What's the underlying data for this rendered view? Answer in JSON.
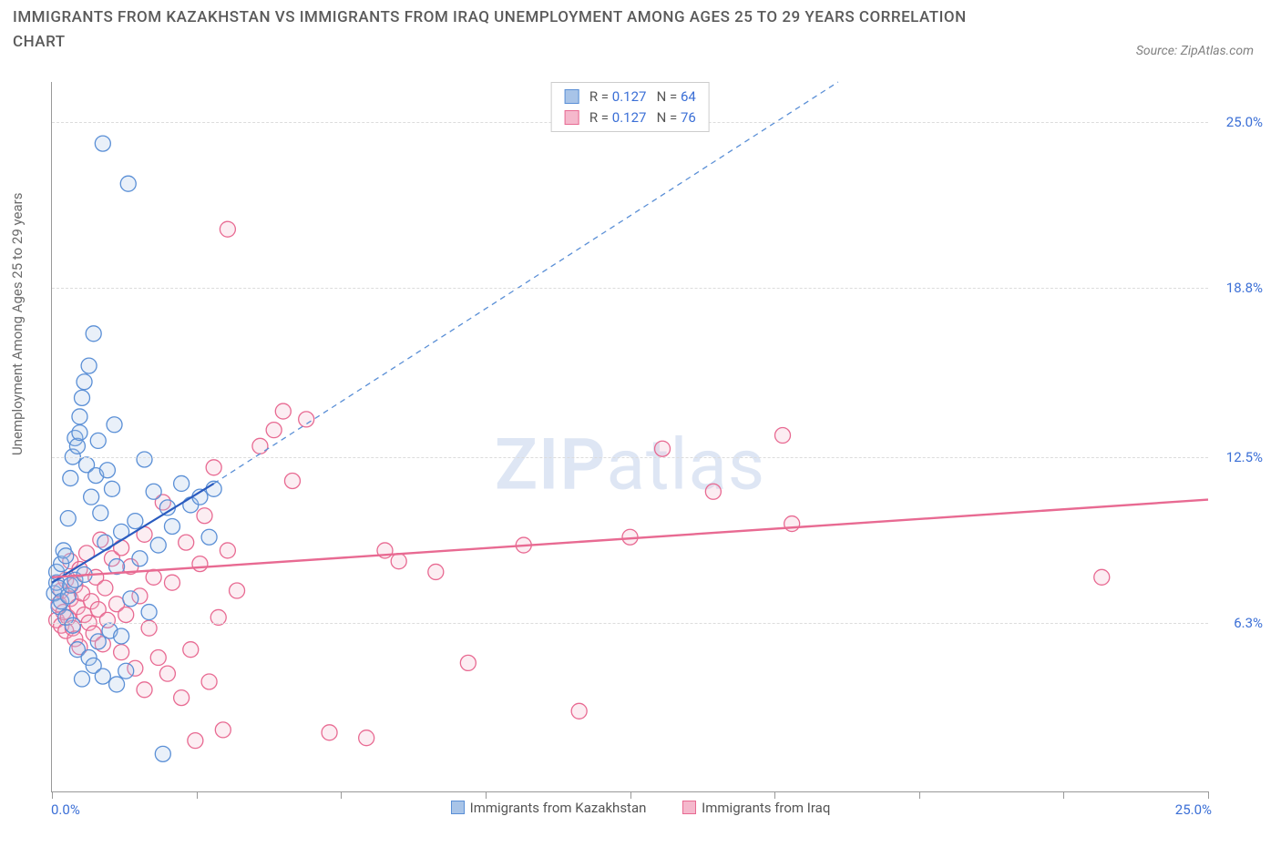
{
  "title": "IMMIGRANTS FROM KAZAKHSTAN VS IMMIGRANTS FROM IRAQ UNEMPLOYMENT AMONG AGES 25 TO 29 YEARS CORRELATION CHART",
  "source": "Source: ZipAtlas.com",
  "y_axis_label": "Unemployment Among Ages 25 to 29 years",
  "watermark": {
    "bold": "ZIP",
    "rest": "atlas"
  },
  "chart": {
    "type": "scatter",
    "background_color": "#ffffff",
    "grid_color": "#dcdcdc",
    "axis_color": "#999999",
    "label_fontsize": 15,
    "title_fontsize": 17,
    "title_color": "#5a5a5a",
    "tick_label_color": "#3b6fd6",
    "xlim": [
      0,
      25
    ],
    "ylim": [
      0,
      26.5
    ],
    "xtick_positions": [
      0,
      3.125,
      6.25,
      9.375,
      12.5,
      15.625,
      18.75,
      21.875,
      25
    ],
    "ytick_labels": [
      {
        "value": 6.3,
        "label": "6.3%"
      },
      {
        "value": 12.5,
        "label": "12.5%"
      },
      {
        "value": 18.8,
        "label": "18.8%"
      },
      {
        "value": 25.0,
        "label": "25.0%"
      }
    ],
    "x_left_label": "0.0%",
    "x_right_label": "25.0%",
    "marker_radius": 8.5,
    "marker_fill_opacity": 0.25,
    "marker_stroke_width": 1.3
  },
  "series": {
    "kazakhstan": {
      "label": "Immigrants from Kazakhstan",
      "color": "#5a8fd6",
      "fill_color": "#a8c4e8",
      "R": "0.127",
      "N": "64",
      "trend": {
        "solid": {
          "x1": 0.0,
          "y1": 7.8,
          "x2": 3.5,
          "y2": 11.5,
          "width": 2.2
        },
        "dashed": {
          "x1": 3.5,
          "y1": 11.5,
          "x2": 17.0,
          "y2": 26.5,
          "dash": "6,5",
          "width": 1.3
        }
      },
      "points": [
        [
          0.05,
          7.4
        ],
        [
          0.1,
          7.8
        ],
        [
          0.1,
          8.2
        ],
        [
          0.15,
          6.9
        ],
        [
          0.15,
          7.6
        ],
        [
          0.2,
          8.5
        ],
        [
          0.2,
          7.1
        ],
        [
          0.25,
          9.0
        ],
        [
          0.3,
          6.5
        ],
        [
          0.3,
          8.8
        ],
        [
          0.35,
          7.3
        ],
        [
          0.35,
          10.2
        ],
        [
          0.4,
          7.7
        ],
        [
          0.4,
          11.7
        ],
        [
          0.45,
          12.5
        ],
        [
          0.45,
          6.2
        ],
        [
          0.5,
          13.2
        ],
        [
          0.5,
          7.9
        ],
        [
          0.55,
          12.9
        ],
        [
          0.55,
          5.3
        ],
        [
          0.6,
          13.4
        ],
        [
          0.6,
          14.0
        ],
        [
          0.65,
          14.7
        ],
        [
          0.65,
          4.2
        ],
        [
          0.7,
          15.3
        ],
        [
          0.7,
          8.1
        ],
        [
          0.75,
          12.2
        ],
        [
          0.8,
          15.9
        ],
        [
          0.8,
          5.0
        ],
        [
          0.85,
          11.0
        ],
        [
          0.9,
          17.1
        ],
        [
          0.9,
          4.7
        ],
        [
          0.95,
          11.8
        ],
        [
          1.0,
          13.1
        ],
        [
          1.0,
          5.6
        ],
        [
          1.05,
          10.4
        ],
        [
          1.1,
          4.3
        ],
        [
          1.1,
          24.2
        ],
        [
          1.15,
          9.3
        ],
        [
          1.2,
          12.0
        ],
        [
          1.25,
          6.0
        ],
        [
          1.3,
          11.3
        ],
        [
          1.35,
          13.7
        ],
        [
          1.4,
          8.4
        ],
        [
          1.4,
          4.0
        ],
        [
          1.5,
          9.7
        ],
        [
          1.5,
          5.8
        ],
        [
          1.6,
          4.5
        ],
        [
          1.65,
          22.7
        ],
        [
          1.7,
          7.2
        ],
        [
          1.8,
          10.1
        ],
        [
          1.9,
          8.7
        ],
        [
          2.0,
          12.4
        ],
        [
          2.1,
          6.7
        ],
        [
          2.2,
          11.2
        ],
        [
          2.3,
          9.2
        ],
        [
          2.4,
          1.4
        ],
        [
          2.5,
          10.6
        ],
        [
          2.6,
          9.9
        ],
        [
          2.8,
          11.5
        ],
        [
          3.0,
          10.7
        ],
        [
          3.2,
          11.0
        ],
        [
          3.4,
          9.5
        ],
        [
          3.5,
          11.3
        ]
      ]
    },
    "iraq": {
      "label": "Immigrants from Iraq",
      "color": "#e86a92",
      "fill_color": "#f5b8cc",
      "R": "0.127",
      "N": "76",
      "trend": {
        "solid": {
          "x1": 0.0,
          "y1": 8.0,
          "x2": 25.0,
          "y2": 10.9,
          "width": 2.4
        }
      },
      "points": [
        [
          0.1,
          6.4
        ],
        [
          0.15,
          7.0
        ],
        [
          0.2,
          6.2
        ],
        [
          0.2,
          7.5
        ],
        [
          0.25,
          6.7
        ],
        [
          0.3,
          6.0
        ],
        [
          0.3,
          7.9
        ],
        [
          0.35,
          6.5
        ],
        [
          0.4,
          7.2
        ],
        [
          0.4,
          8.6
        ],
        [
          0.45,
          6.1
        ],
        [
          0.5,
          7.7
        ],
        [
          0.5,
          5.7
        ],
        [
          0.55,
          6.9
        ],
        [
          0.6,
          8.3
        ],
        [
          0.6,
          5.4
        ],
        [
          0.65,
          7.4
        ],
        [
          0.7,
          6.6
        ],
        [
          0.75,
          8.9
        ],
        [
          0.8,
          6.3
        ],
        [
          0.85,
          7.1
        ],
        [
          0.9,
          5.9
        ],
        [
          0.95,
          8.0
        ],
        [
          1.0,
          6.8
        ],
        [
          1.05,
          9.4
        ],
        [
          1.1,
          5.5
        ],
        [
          1.15,
          7.6
        ],
        [
          1.2,
          6.4
        ],
        [
          1.3,
          8.7
        ],
        [
          1.4,
          7.0
        ],
        [
          1.5,
          9.1
        ],
        [
          1.5,
          5.2
        ],
        [
          1.6,
          6.6
        ],
        [
          1.7,
          8.4
        ],
        [
          1.8,
          4.6
        ],
        [
          1.9,
          7.3
        ],
        [
          2.0,
          9.6
        ],
        [
          2.0,
          3.8
        ],
        [
          2.1,
          6.1
        ],
        [
          2.2,
          8.0
        ],
        [
          2.3,
          5.0
        ],
        [
          2.4,
          10.8
        ],
        [
          2.5,
          4.4
        ],
        [
          2.6,
          7.8
        ],
        [
          2.8,
          3.5
        ],
        [
          2.9,
          9.3
        ],
        [
          3.0,
          5.3
        ],
        [
          3.1,
          1.9
        ],
        [
          3.2,
          8.5
        ],
        [
          3.3,
          10.3
        ],
        [
          3.4,
          4.1
        ],
        [
          3.5,
          12.1
        ],
        [
          3.6,
          6.5
        ],
        [
          3.7,
          2.3
        ],
        [
          3.8,
          9.0
        ],
        [
          3.8,
          21.0
        ],
        [
          4.0,
          7.5
        ],
        [
          4.5,
          12.9
        ],
        [
          4.8,
          13.5
        ],
        [
          5.0,
          14.2
        ],
        [
          5.2,
          11.6
        ],
        [
          5.5,
          13.9
        ],
        [
          6.0,
          2.2
        ],
        [
          6.8,
          2.0
        ],
        [
          7.2,
          9.0
        ],
        [
          7.5,
          8.6
        ],
        [
          8.3,
          8.2
        ],
        [
          9.0,
          4.8
        ],
        [
          10.2,
          9.2
        ],
        [
          11.4,
          3.0
        ],
        [
          12.5,
          9.5
        ],
        [
          13.2,
          12.8
        ],
        [
          14.3,
          11.2
        ],
        [
          15.8,
          13.3
        ],
        [
          16.0,
          10.0
        ],
        [
          22.7,
          8.0
        ]
      ]
    }
  },
  "bottom_legend": [
    {
      "key": "kazakhstan"
    },
    {
      "key": "iraq"
    }
  ]
}
